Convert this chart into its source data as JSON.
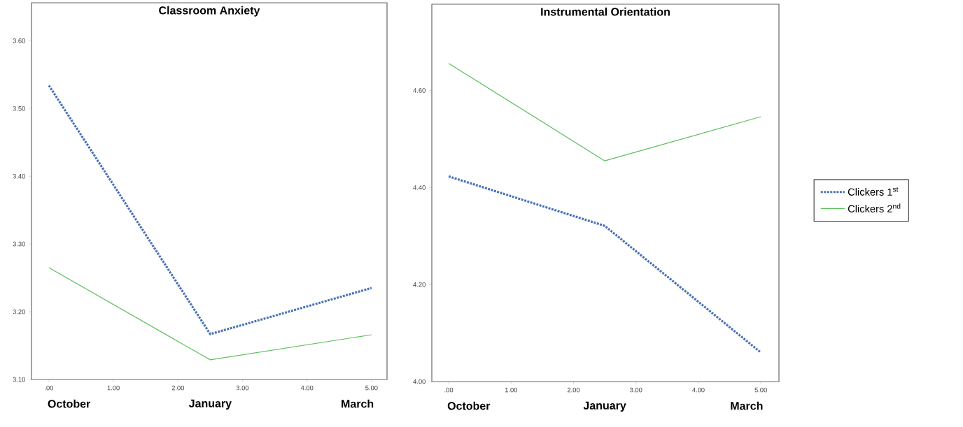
{
  "chart_data": [
    {
      "type": "line",
      "title": "Classroom Anxiety",
      "x": [
        0,
        2.5,
        5
      ],
      "xlim": [
        -0.27,
        5.24
      ],
      "ylim": [
        3.1,
        3.656
      ],
      "xticks": [
        {
          "value": 0,
          "label": ".00"
        },
        {
          "value": 1,
          "label": "1.00"
        },
        {
          "value": 2,
          "label": "2.00"
        },
        {
          "value": 3,
          "label": "3.00"
        },
        {
          "value": 4,
          "label": "4.00"
        },
        {
          "value": 5,
          "label": "5.00"
        }
      ],
      "yticks": [
        {
          "value": 3.1,
          "label": "3.10"
        },
        {
          "value": 3.2,
          "label": "3.20"
        },
        {
          "value": 3.3,
          "label": "3.30"
        },
        {
          "value": 3.4,
          "label": "3.40"
        },
        {
          "value": 3.5,
          "label": "3.50"
        },
        {
          "value": 3.6,
          "label": "3.60"
        }
      ],
      "series": [
        {
          "color": "#4a72b8",
          "line_style": "dotted",
          "values": [
            3.534,
            3.167,
            3.235
          ]
        },
        {
          "color": "#5cbf5c",
          "line_style": "solid",
          "values": [
            3.265,
            3.129,
            3.166
          ]
        }
      ],
      "annotations": [
        "October",
        "January",
        "March"
      ],
      "grid": false,
      "legend": false
    },
    {
      "type": "line",
      "title": "Instrumental Orientation",
      "x": [
        0,
        2.5,
        5
      ],
      "xlim": [
        -0.27,
        5.29
      ],
      "ylim": [
        4.0,
        4.778
      ],
      "xticks": [
        {
          "value": 0,
          "label": ".00"
        },
        {
          "value": 1,
          "label": "1.00"
        },
        {
          "value": 2,
          "label": "2.00"
        },
        {
          "value": 3,
          "label": "3.00"
        },
        {
          "value": 4,
          "label": "4.00"
        },
        {
          "value": 5,
          "label": "5.00"
        }
      ],
      "yticks": [
        {
          "value": 4.0,
          "label": "4.00"
        },
        {
          "value": 4.2,
          "label": "4.20"
        },
        {
          "value": 4.4,
          "label": "4.40"
        },
        {
          "value": 4.6,
          "label": "4.60"
        }
      ],
      "series": [
        {
          "name": "Clickers 1$^{st}$",
          "color": "#4a72b8",
          "line_style": "dotted",
          "values": [
            4.423,
            4.321,
            4.06
          ]
        },
        {
          "name": "Clickers 2$^{nd}$",
          "color": "#5cbf5c",
          "line_style": "solid",
          "values": [
            4.656,
            4.455,
            4.546
          ]
        }
      ],
      "annotations": [
        "October",
        "January",
        "March"
      ],
      "grid": false,
      "legend": "right"
    }
  ]
}
